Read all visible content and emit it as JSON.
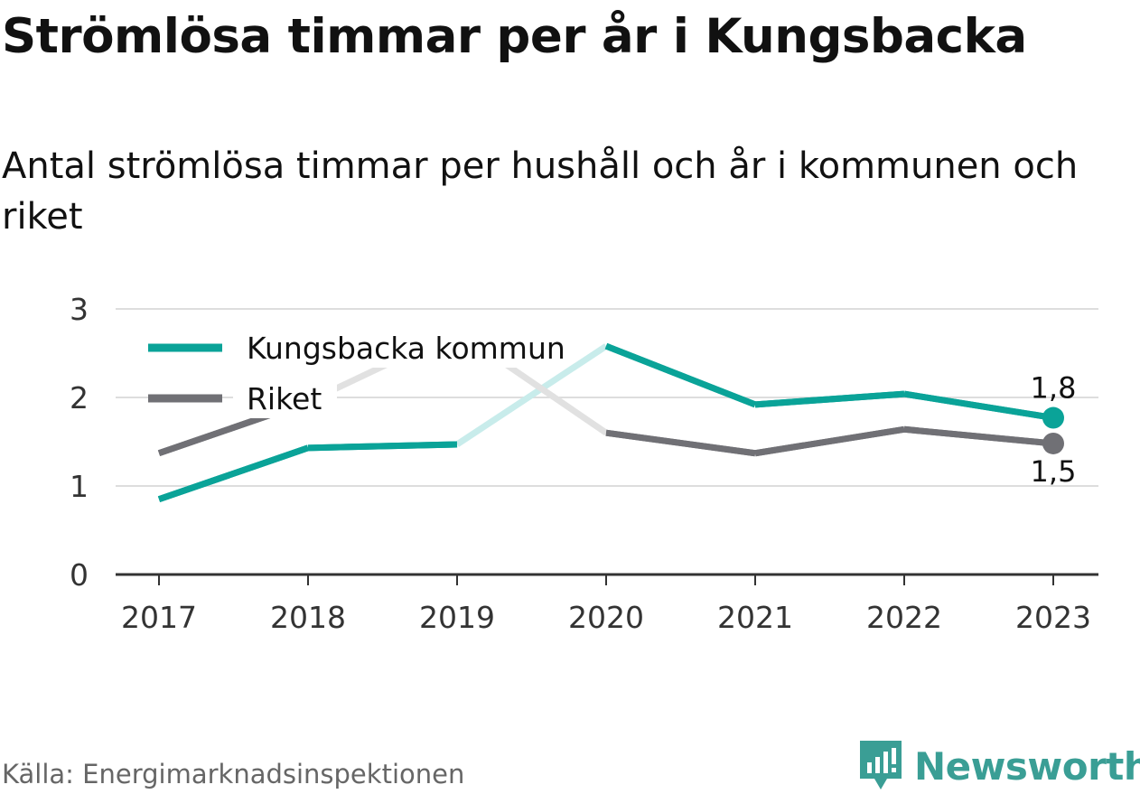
{
  "chart_data": {
    "type": "line",
    "title": "Strömlösa timmar per år i Kungsbacka",
    "subtitle": "Antal strömlösa timmar per hushåll och år i kommunen och riket",
    "x": [
      "2017",
      "2018",
      "2019",
      "2020",
      "2021",
      "2022",
      "2023"
    ],
    "yticks": [
      "0",
      "1",
      "2",
      "3"
    ],
    "ylim": [
      0,
      3
    ],
    "grid": true,
    "legend_position": "top-left",
    "series": [
      {
        "name": "Kungsbacka kommun",
        "color": "#0aa398",
        "faded_color": "#c8eceb",
        "values": [
          0.85,
          1.43,
          1.47,
          2.58,
          1.92,
          2.04,
          1.77
        ],
        "end_label": "1,8"
      },
      {
        "name": "Riket",
        "color": "#707075",
        "faded_color": "#e1e1e1",
        "values": [
          1.37,
          1.95,
          2.75,
          1.6,
          1.37,
          1.64,
          1.48
        ],
        "end_label": "1,5"
      }
    ]
  },
  "source": "Källa: Energimarknadsinspektionen",
  "brand": {
    "name": "Newsworthy",
    "color": "#3a9e95",
    "icon": "newsworthy-logo-icon"
  }
}
